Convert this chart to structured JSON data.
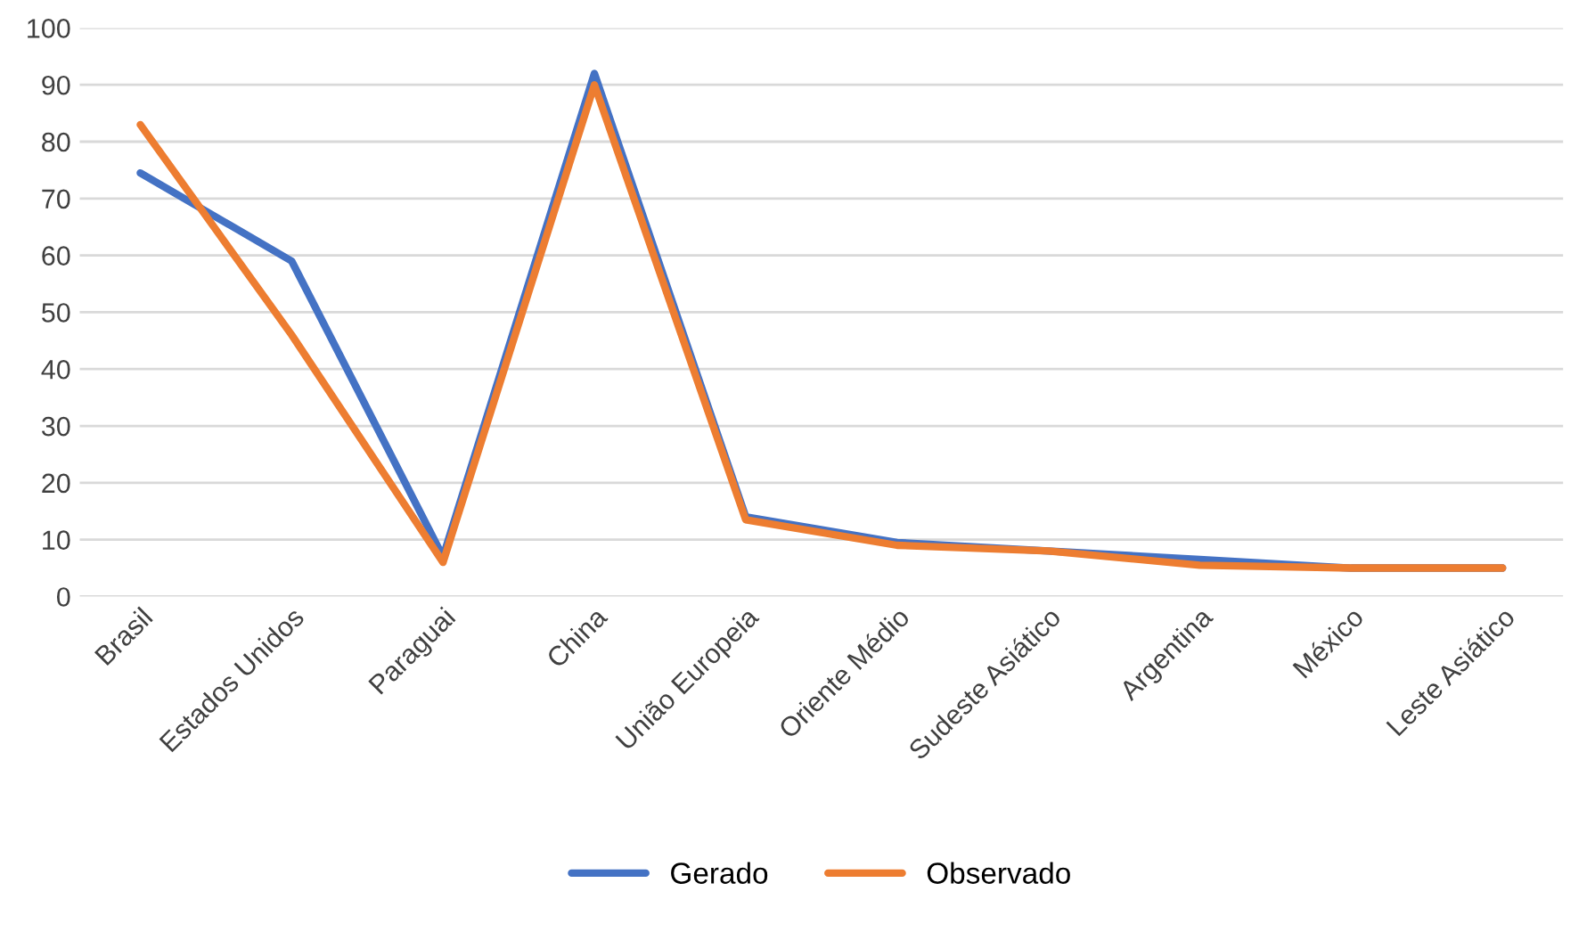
{
  "chart_data": {
    "type": "line",
    "categories": [
      "Brasil",
      "Estados Unidos",
      "Paraguai",
      "China",
      "União Europeia",
      "Oriente Médio",
      "Sudeste Asiático",
      "Argentina",
      "México",
      "Leste Asiático"
    ],
    "series": [
      {
        "name": "Gerado",
        "color": "#4472c4",
        "values": [
          74.5,
          59,
          7,
          92,
          14,
          9.5,
          8,
          6.5,
          5,
          5
        ]
      },
      {
        "name": "Observado",
        "color": "#ed7d31",
        "values": [
          83,
          46,
          6,
          90,
          13.5,
          9,
          8,
          5.5,
          5,
          5
        ]
      }
    ],
    "ylim": [
      0,
      100
    ],
    "yticks": [
      0,
      10,
      20,
      30,
      40,
      50,
      60,
      70,
      80,
      90,
      100
    ],
    "grid": "y",
    "legend": "bottom",
    "marker": "none",
    "line_style": "solid"
  }
}
